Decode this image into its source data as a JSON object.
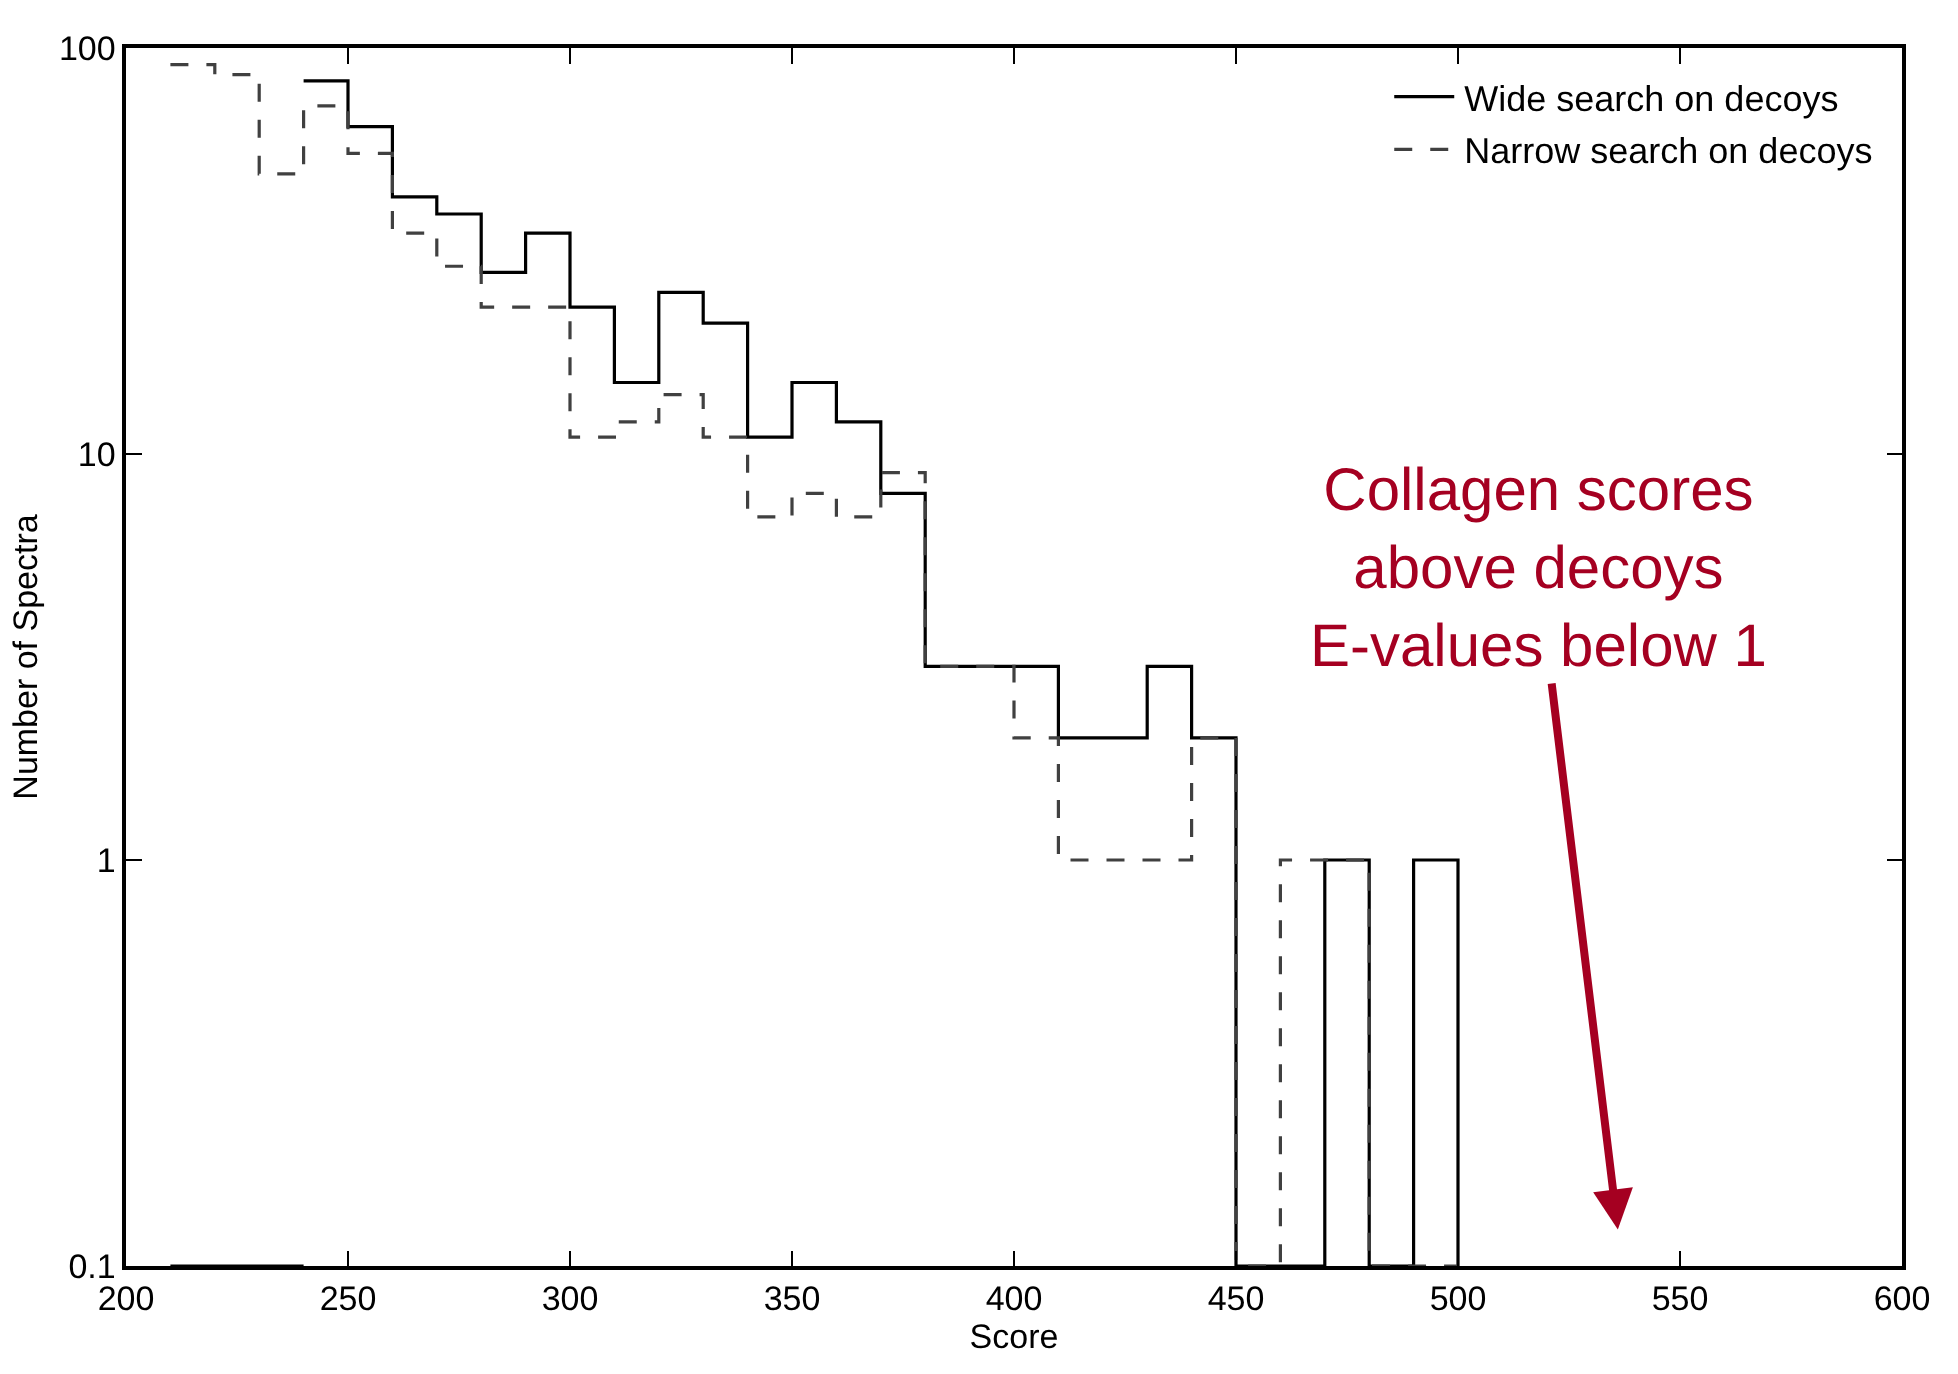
{
  "chart_data": {
    "type": "histogram",
    "xlabel": "Score",
    "ylabel": "Number of Spectra",
    "bins": [
      210,
      220,
      230,
      240,
      250,
      260,
      270,
      280,
      290,
      300,
      310,
      320,
      330,
      340,
      350,
      360,
      370,
      380,
      390,
      400,
      410,
      420,
      430,
      440,
      450,
      460,
      470,
      480,
      490,
      500
    ],
    "series": [
      {
        "name": "Wide search on decoys",
        "color": "#000000",
        "line_style": "solid",
        "values": [
          null,
          null,
          null,
          83,
          64,
          43,
          39,
          28,
          35,
          23,
          15,
          25,
          21,
          11,
          15,
          12,
          8,
          3,
          3,
          3,
          2,
          2,
          3,
          2,
          null,
          null,
          1,
          null,
          1
        ]
      },
      {
        "name": "Narrow search on decoys",
        "color": "#404040",
        "line_style": "dashed",
        "values": [
          91,
          86,
          49,
          72,
          55,
          35,
          29,
          23,
          23,
          11,
          12,
          14,
          11,
          7,
          8,
          7,
          9,
          3,
          3,
          2,
          1,
          1,
          1,
          2,
          null,
          1,
          1,
          null,
          null
        ]
      }
    ],
    "xlim": [
      200,
      600
    ],
    "xticks": [
      200,
      250,
      300,
      350,
      400,
      450,
      500,
      550,
      600
    ],
    "ylim": [
      0.1,
      100
    ],
    "yticks": [
      0.1,
      1,
      10,
      100
    ],
    "log": "y",
    "legend": "top right",
    "annotations": [
      "Collagen scores\nabove decoys\nE-values below 1"
    ]
  }
}
